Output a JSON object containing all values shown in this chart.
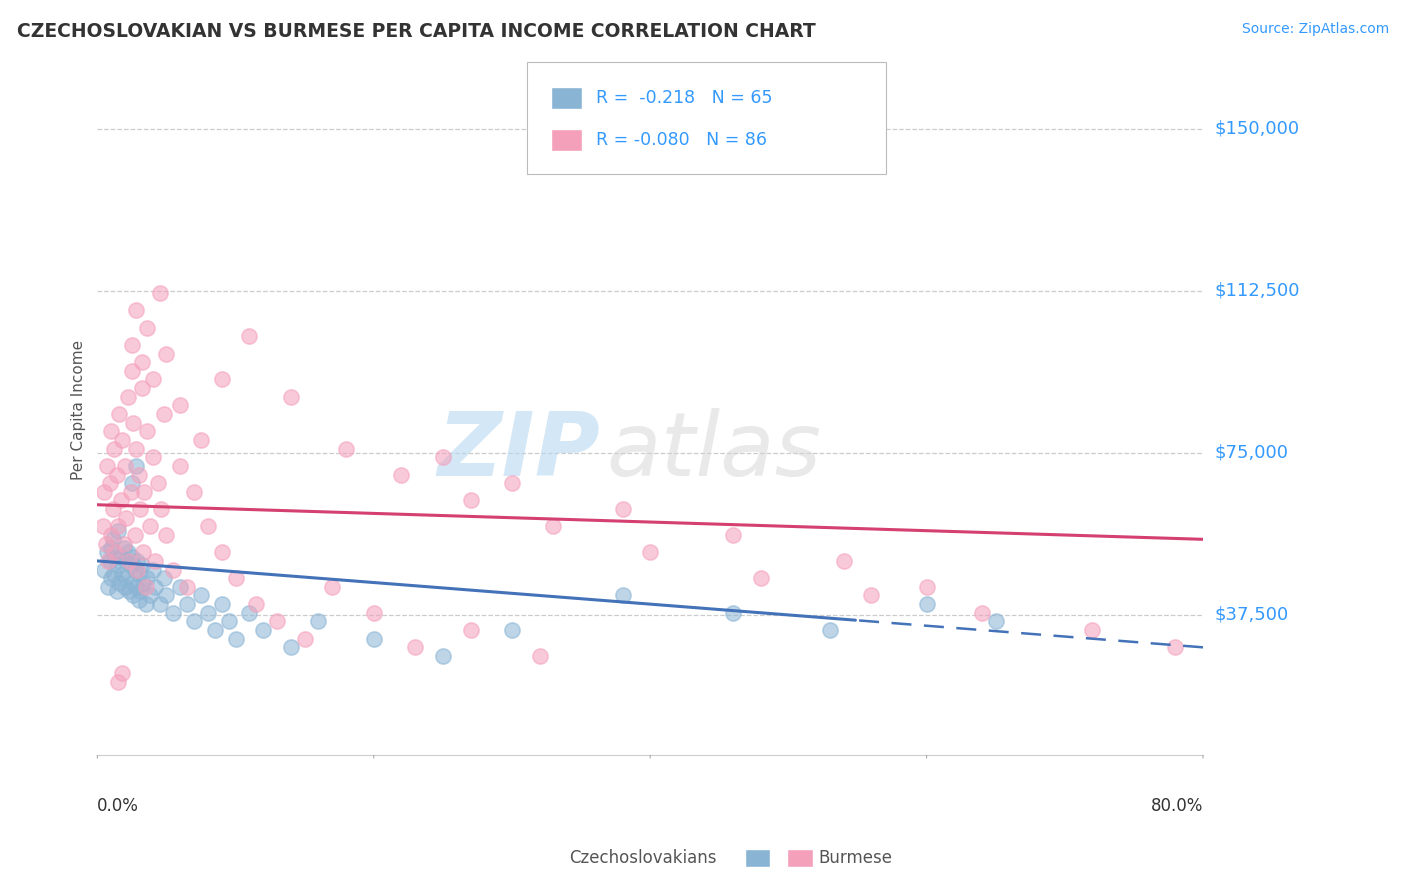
{
  "title": "CZECHOSLOVAKIAN VS BURMESE PER CAPITA INCOME CORRELATION CHART",
  "source_text": "Source: ZipAtlas.com",
  "ylabel": "Per Capita Income",
  "yticks": [
    0,
    37500,
    75000,
    112500,
    150000
  ],
  "ytick_labels": [
    "",
    "$37,500",
    "$75,000",
    "$112,500",
    "$150,000"
  ],
  "xlim": [
    0.0,
    0.8
  ],
  "ylim": [
    5000,
    165000
  ],
  "legend_line1": "R =  -0.218   N = 65",
  "legend_line2": "R = -0.080   N = 86",
  "color_czech": "#8ab4d4",
  "color_burmese": "#f4a0bb",
  "color_czech_line": "#4472b8",
  "color_burmese_line": "#d44070",
  "watermark_zip": "ZIP",
  "watermark_atlas": "atlas",
  "czecho_x": [
    0.005,
    0.007,
    0.008,
    0.009,
    0.01,
    0.01,
    0.011,
    0.012,
    0.013,
    0.014,
    0.015,
    0.015,
    0.016,
    0.017,
    0.018,
    0.019,
    0.02,
    0.02,
    0.021,
    0.022,
    0.023,
    0.024,
    0.025,
    0.025,
    0.026,
    0.027,
    0.028,
    0.029,
    0.03,
    0.03,
    0.031,
    0.032,
    0.033,
    0.035,
    0.036,
    0.038,
    0.04,
    0.042,
    0.045,
    0.048,
    0.05,
    0.055,
    0.06,
    0.065,
    0.07,
    0.075,
    0.08,
    0.085,
    0.09,
    0.095,
    0.1,
    0.11,
    0.12,
    0.14,
    0.16,
    0.2,
    0.25,
    0.3,
    0.38,
    0.46,
    0.53,
    0.6,
    0.65,
    0.025,
    0.028
  ],
  "czecho_y": [
    48000,
    52000,
    44000,
    50000,
    46000,
    53000,
    55000,
    47000,
    51000,
    43000,
    49000,
    57000,
    45000,
    51000,
    47000,
    53000,
    44000,
    50000,
    46000,
    52000,
    43000,
    49000,
    45000,
    51000,
    42000,
    48000,
    44000,
    50000,
    41000,
    47000,
    43000,
    49000,
    45000,
    40000,
    46000,
    42000,
    48000,
    44000,
    40000,
    46000,
    42000,
    38000,
    44000,
    40000,
    36000,
    42000,
    38000,
    34000,
    40000,
    36000,
    32000,
    38000,
    34000,
    30000,
    36000,
    32000,
    28000,
    34000,
    42000,
    38000,
    34000,
    40000,
    36000,
    68000,
    72000
  ],
  "burmese_x": [
    0.004,
    0.005,
    0.006,
    0.007,
    0.008,
    0.009,
    0.01,
    0.01,
    0.011,
    0.012,
    0.013,
    0.014,
    0.015,
    0.016,
    0.017,
    0.018,
    0.019,
    0.02,
    0.021,
    0.022,
    0.023,
    0.024,
    0.025,
    0.026,
    0.027,
    0.028,
    0.029,
    0.03,
    0.031,
    0.032,
    0.033,
    0.034,
    0.035,
    0.036,
    0.038,
    0.04,
    0.042,
    0.044,
    0.046,
    0.048,
    0.05,
    0.055,
    0.06,
    0.065,
    0.07,
    0.08,
    0.09,
    0.1,
    0.115,
    0.13,
    0.15,
    0.17,
    0.2,
    0.23,
    0.27,
    0.32,
    0.025,
    0.028,
    0.032,
    0.036,
    0.04,
    0.045,
    0.05,
    0.06,
    0.075,
    0.09,
    0.11,
    0.14,
    0.18,
    0.22,
    0.27,
    0.33,
    0.4,
    0.48,
    0.56,
    0.64,
    0.72,
    0.78,
    0.6,
    0.54,
    0.46,
    0.38,
    0.3,
    0.25,
    0.015,
    0.018
  ],
  "burmese_y": [
    58000,
    66000,
    54000,
    72000,
    50000,
    68000,
    56000,
    80000,
    62000,
    76000,
    52000,
    70000,
    58000,
    84000,
    64000,
    78000,
    54000,
    72000,
    60000,
    88000,
    50000,
    66000,
    94000,
    82000,
    56000,
    76000,
    48000,
    70000,
    62000,
    90000,
    52000,
    66000,
    44000,
    80000,
    58000,
    74000,
    50000,
    68000,
    62000,
    84000,
    56000,
    48000,
    72000,
    44000,
    66000,
    58000,
    52000,
    46000,
    40000,
    36000,
    32000,
    44000,
    38000,
    30000,
    34000,
    28000,
    100000,
    108000,
    96000,
    104000,
    92000,
    112000,
    98000,
    86000,
    78000,
    92000,
    102000,
    88000,
    76000,
    70000,
    64000,
    58000,
    52000,
    46000,
    42000,
    38000,
    34000,
    30000,
    44000,
    50000,
    56000,
    62000,
    68000,
    74000,
    22000,
    24000
  ]
}
